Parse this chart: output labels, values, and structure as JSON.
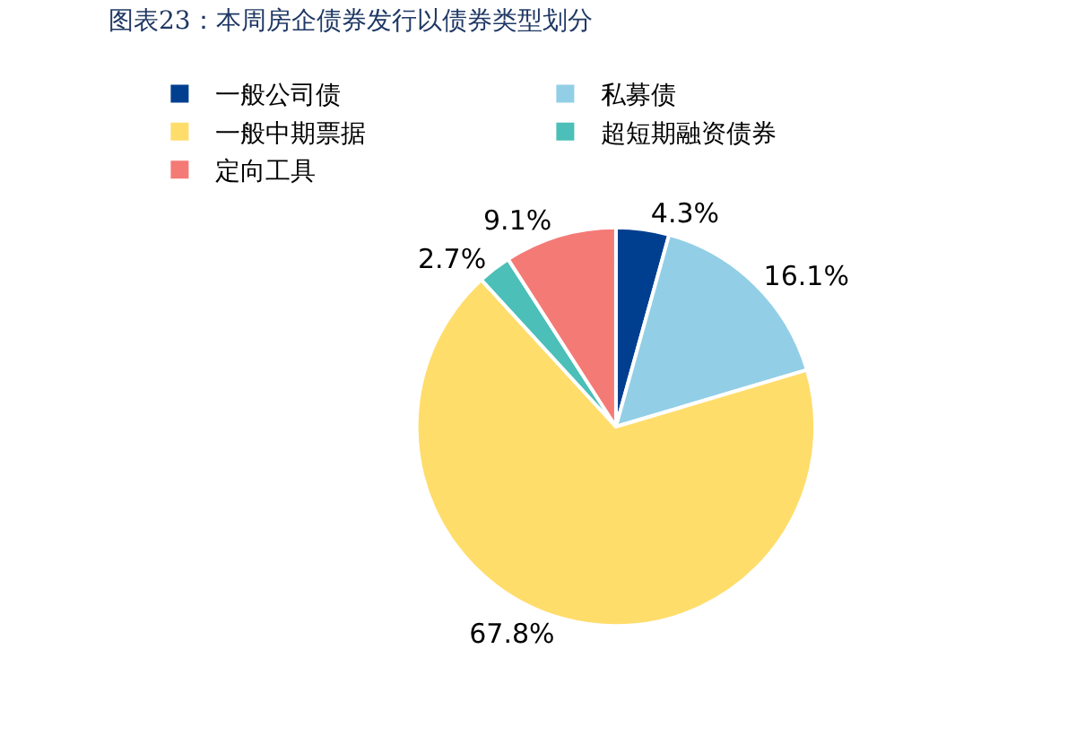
{
  "chart_data": {
    "type": "pie",
    "title": "图表23：本周房企债券发行以债券类型划分",
    "categories": [
      "一般公司债",
      "私募债",
      "一般中期票据",
      "超短期融资债券",
      "定向工具"
    ],
    "values": [
      4.3,
      16.1,
      67.8,
      2.7,
      9.1
    ],
    "colors": [
      "#003f8f",
      "#92cfe6",
      "#ffdd6b",
      "#4bbfb8",
      "#f47a76"
    ],
    "value_labels": [
      "4.3%",
      "16.1%",
      "67.8%",
      "2.7%",
      "9.1%"
    ],
    "legend": "top"
  }
}
